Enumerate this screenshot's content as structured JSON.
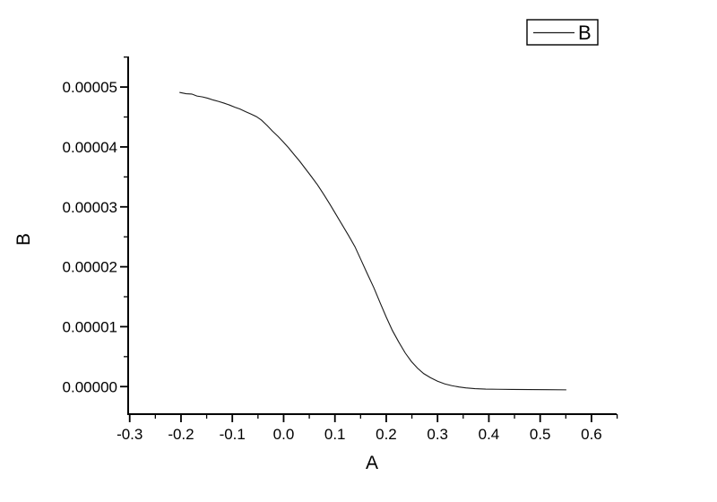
{
  "window": {
    "background": "#ffffff"
  },
  "chart_data": {
    "type": "line",
    "title": "",
    "xlabel": "A",
    "ylabel": "B",
    "grid": false,
    "legend": {
      "entries": [
        "B"
      ],
      "position": "top-right"
    },
    "axis_color": "#000000",
    "line_color": "#1a1a1a",
    "axes": {
      "xlim": [
        -0.303,
        0.649
      ],
      "ylim": [
        -4.6e-06,
        5.51e-05
      ],
      "x_major_ticks": [
        -0.3,
        -0.2,
        -0.1,
        0.0,
        0.1,
        0.2,
        0.3,
        0.4,
        0.5,
        0.6
      ],
      "x_tick_labels": [
        "-0.3",
        "-0.2",
        "-0.1",
        "0.0",
        "0.1",
        "0.2",
        "0.3",
        "0.4",
        "0.5",
        "0.6"
      ],
      "x_minor_ticks": [
        -0.25,
        -0.15,
        -0.05,
        0.05,
        0.15,
        0.25,
        0.35,
        0.45,
        0.55,
        0.65
      ],
      "y_major_ticks": [
        0.0,
        1e-05,
        2e-05,
        3e-05,
        4e-05,
        5e-05
      ],
      "y_tick_labels": [
        "0.00000",
        "0.00001",
        "0.00002",
        "0.00003",
        "0.00004",
        "0.00005"
      ],
      "y_minor_ticks": [
        5e-06,
        1.5e-05,
        2.5e-05,
        3.5e-05,
        4.5e-05,
        5.5e-05
      ]
    },
    "series": [
      {
        "name": "B",
        "x": [
          -0.203,
          -0.19,
          -0.179,
          -0.169,
          -0.158,
          -0.148,
          -0.137,
          -0.127,
          -0.116,
          -0.106,
          -0.095,
          -0.085,
          -0.074,
          -0.064,
          -0.053,
          -0.043,
          -0.032,
          -0.022,
          -0.011,
          -0.001,
          0.01,
          0.02,
          0.031,
          0.041,
          0.053,
          0.066,
          0.078,
          0.09,
          0.102,
          0.114,
          0.127,
          0.139,
          0.151,
          0.163,
          0.176,
          0.188,
          0.2,
          0.212,
          0.224,
          0.237,
          0.249,
          0.261,
          0.273,
          0.286,
          0.3,
          0.314,
          0.328,
          0.342,
          0.355,
          0.373,
          0.394,
          0.418,
          0.446,
          0.478,
          0.513,
          0.551
        ],
        "y": [
          4.91e-05,
          4.888e-05,
          4.883e-05,
          4.85e-05,
          4.835e-05,
          4.813e-05,
          4.783e-05,
          4.76e-05,
          4.731e-05,
          4.701e-05,
          4.663e-05,
          4.633e-05,
          4.588e-05,
          4.551e-05,
          4.506e-05,
          4.446e-05,
          4.356e-05,
          4.266e-05,
          4.177e-05,
          4.087e-05,
          3.982e-05,
          3.877e-05,
          3.765e-05,
          3.653e-05,
          3.518e-05,
          3.368e-05,
          3.211e-05,
          3.046e-05,
          2.874e-05,
          2.702e-05,
          2.515e-05,
          2.335e-05,
          2.111e-05,
          1.886e-05,
          1.647e-05,
          1.4e-05,
          1.16e-05,
          9.36e-06,
          7.49e-06,
          5.61e-06,
          4.19e-06,
          3.07e-06,
          2.17e-06,
          1.5e-06,
          9e-07,
          4.5e-07,
          1.5e-07,
          -7e-08,
          -2.2e-07,
          -3.4e-07,
          -4.2e-07,
          -4.5e-07,
          -4.8e-07,
          -4.9e-07,
          -5.1e-07,
          -5.4e-07
        ]
      }
    ]
  }
}
